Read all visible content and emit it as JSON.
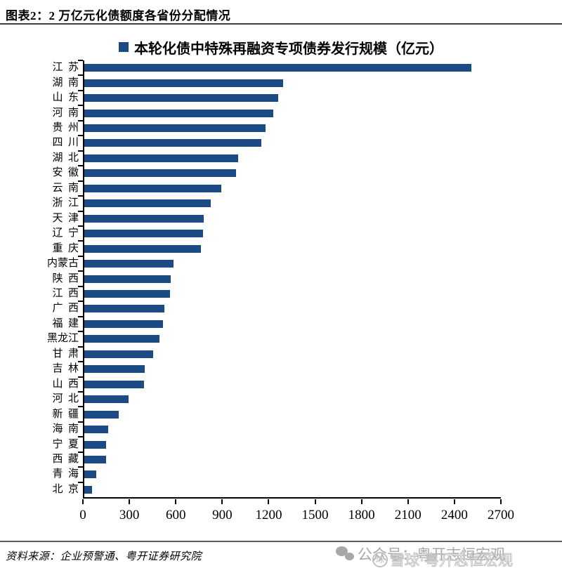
{
  "caption": "图表2：2 万亿元化债额度各省份分配情况",
  "source_note": "资料来源：企业预警通、粤开证券研究院",
  "watermark": {
    "wechat_text": "公众号：粤开志恒宏观",
    "xueqiu_text": "雪球·粤开志恒宏观",
    "xueqiu_logo_glyph": "球"
  },
  "colors": {
    "bar": "#1B4A85",
    "axis": "#000000",
    "caption_rule": "#3F3F3F",
    "watermark": "#A8A8A8"
  },
  "chart_data": {
    "type": "bar",
    "orientation": "horizontal",
    "title": "",
    "legend": [
      {
        "label": "本轮化债中特殊再融资专项债券发行规模（亿元）",
        "color": "#1B4A85"
      }
    ],
    "legend_position": "top-center",
    "unit": "亿元",
    "grid": false,
    "xlim": [
      0,
      2700
    ],
    "x_ticks": [
      0,
      300,
      600,
      900,
      1200,
      1500,
      1800,
      2100,
      2400,
      2700
    ],
    "categories": [
      "江苏",
      "湖南",
      "山东",
      "河南",
      "贵州",
      "四川",
      "湖北",
      "安徽",
      "云南",
      "浙江",
      "天津",
      "辽宁",
      "重庆",
      "内蒙古",
      "陕西",
      "江西",
      "广西",
      "福建",
      "黑龙江",
      "甘肃",
      "吉林",
      "山西",
      "河北",
      "新疆",
      "海南",
      "宁夏",
      "西藏",
      "青海",
      "北京"
    ],
    "values": [
      2511,
      1288,
      1255,
      1227,
      1176,
      1148,
      996,
      984,
      886,
      820,
      772,
      771,
      756,
      577,
      562,
      556,
      521,
      509,
      487,
      445,
      390,
      387,
      286,
      221,
      153,
      139,
      139,
      79,
      50
    ]
  }
}
